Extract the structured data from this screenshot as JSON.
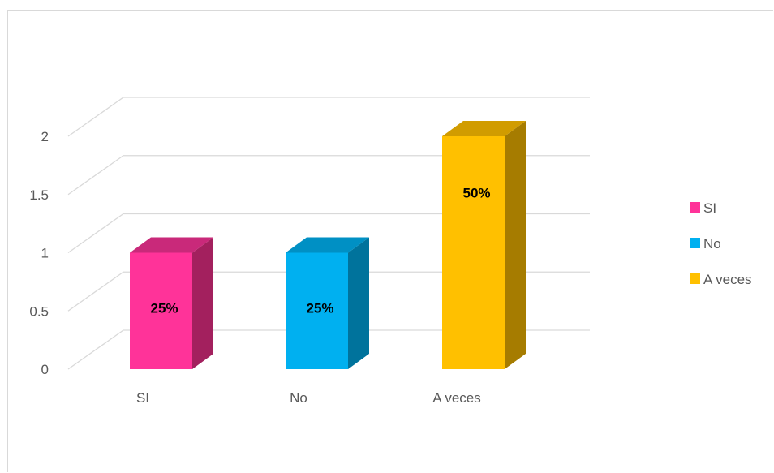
{
  "chart_data": {
    "type": "bar",
    "categories": [
      "SI",
      "No",
      "A veces"
    ],
    "values": [
      1,
      1,
      2
    ],
    "data_labels": [
      "25%",
      "25%",
      "50%"
    ],
    "colors": [
      "#ff3399",
      "#00b0f0",
      "#ffc000"
    ],
    "side_colors": [
      "#a3205e",
      "#00739c",
      "#a67c00"
    ],
    "top_colors": [
      "#c9297a",
      "#0090c4",
      "#d19c00"
    ],
    "ylim": [
      0,
      2
    ],
    "yticks": [
      "0",
      "0.5",
      "1",
      "1.5",
      "2"
    ],
    "ytick_values": [
      0,
      0.5,
      1,
      1.5,
      2
    ],
    "grid": true,
    "style": "3d-clustered-column",
    "legend": {
      "position": "right",
      "entries": [
        "SI",
        "No",
        "A veces"
      ]
    }
  }
}
